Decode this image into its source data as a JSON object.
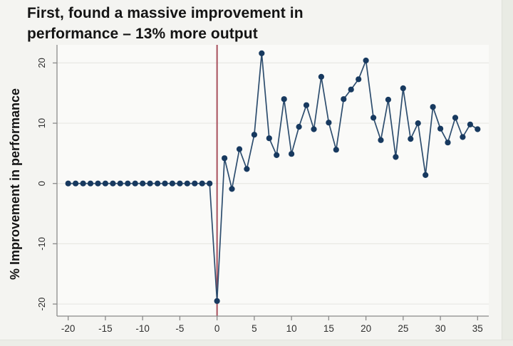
{
  "title": {
    "line1": "First, found a massive improvement in",
    "line2": "performance – 13% more output"
  },
  "colors": {
    "slide_bg": "#f4f4f1",
    "plot_bg": "#fafaf8",
    "axis": "#8a8a8a",
    "tick_label": "#2e2e2e",
    "gridline": "#e8e8e4",
    "reference_line": "#a84f5c",
    "series_line": "#2d4d6e",
    "marker": "#17395f",
    "title_text": "#141414"
  },
  "chart_data": {
    "type": "line",
    "title": "",
    "xlabel": "",
    "ylabel": "% Improvement in performance",
    "legend": "none",
    "grid": "horizontal",
    "x_ticks": [
      -20,
      -15,
      -10,
      -5,
      0,
      5,
      10,
      15,
      20,
      25,
      30,
      35
    ],
    "y_ticks": [
      -20,
      -10,
      0,
      10,
      20
    ],
    "xlim": [
      -21.5,
      36.5
    ],
    "ylim": [
      -22,
      23
    ],
    "reference_line_x": 0,
    "series": [
      {
        "name": "% improvement in performance",
        "marker": "circle",
        "x": [
          -20,
          -19,
          -18,
          -17,
          -16,
          -15,
          -14,
          -13,
          -12,
          -11,
          -10,
          -9,
          -8,
          -7,
          -6,
          -5,
          -4,
          -3,
          -2,
          -1,
          0,
          1,
          2,
          3,
          4,
          5,
          6,
          7,
          8,
          9,
          10,
          11,
          12,
          13,
          14,
          15,
          16,
          17,
          18,
          19,
          20,
          21,
          22,
          23,
          24,
          25,
          26,
          27,
          28,
          29,
          30,
          31,
          32,
          33,
          34,
          35
        ],
        "y": [
          0,
          0,
          0,
          0,
          0,
          0,
          0,
          0,
          0,
          0,
          0,
          0,
          0,
          0,
          0,
          0,
          0,
          0,
          0,
          0,
          -19.5,
          4.2,
          -0.9,
          5.7,
          2.4,
          8.1,
          21.6,
          7.5,
          4.7,
          14.0,
          4.9,
          9.4,
          13.0,
          9.0,
          17.7,
          10.1,
          5.6,
          14.0,
          15.6,
          17.3,
          20.4,
          10.9,
          7.2,
          13.9,
          4.4,
          15.8,
          7.4,
          10.0,
          1.4,
          12.7,
          9.1,
          6.8,
          10.9,
          7.7,
          9.8,
          9.0
        ]
      }
    ]
  }
}
